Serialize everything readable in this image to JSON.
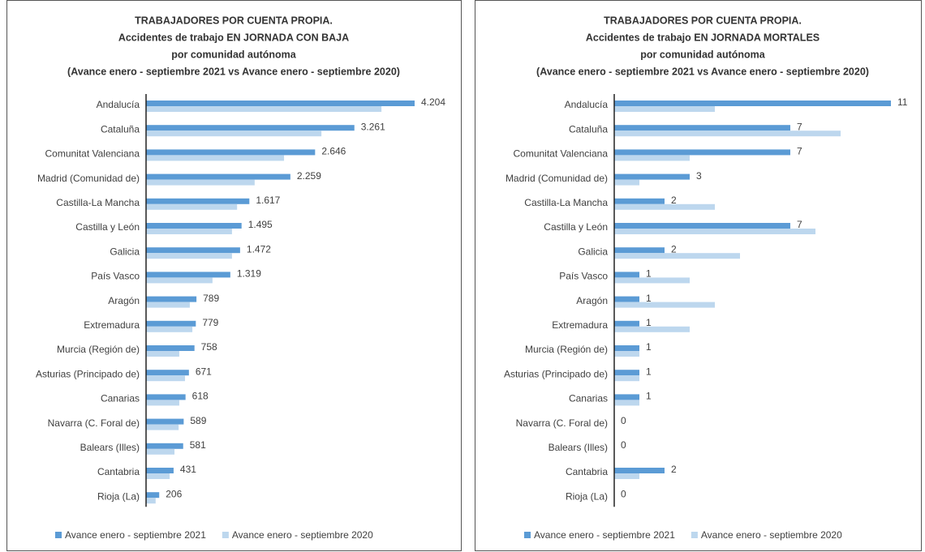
{
  "chart_data": [
    {
      "type": "barh",
      "title_lines": [
        "TRABAJADORES POR CUENTA PROPIA.",
        "Accidentes de trabajo EN JORNADA CON BAJA",
        "por comunidad autónoma",
        "(Avance enero - septiembre 2021 vs Avance enero - septiembre 2020)"
      ],
      "categories": [
        "Andalucía",
        "Cataluña",
        "Comunitat Valenciana",
        "Madrid (Comunidad de)",
        "Castilla-La Mancha",
        "Castilla y León",
        "Galicia",
        "País Vasco",
        "Aragón",
        "Extremadura",
        "Murcia (Región de)",
        "Asturias (Principado de)",
        "Canarias",
        "Navarra (C. Foral de)",
        "Balears (Illes)",
        "Cantabria",
        "Rioja (La)"
      ],
      "series": [
        {
          "name": "Avance enero - septiembre 2021",
          "color": "#5b9bd5",
          "values": [
            4204,
            3261,
            2646,
            2259,
            1617,
            1495,
            1472,
            1319,
            789,
            779,
            758,
            671,
            618,
            589,
            581,
            431,
            206
          ],
          "value_labels": [
            "4.204",
            "3.261",
            "2.646",
            "2.259",
            "1.617",
            "1.495",
            "1.472",
            "1.319",
            "789",
            "779",
            "758",
            "671",
            "618",
            "589",
            "581",
            "431",
            "206"
          ]
        },
        {
          "name": "Avance enero - septiembre 2020",
          "color": "#bdd7ee",
          "values": [
            3685,
            2745,
            2160,
            1700,
            1425,
            1345,
            1345,
            1040,
            685,
            725,
            520,
            610,
            520,
            510,
            445,
            370,
            150
          ]
        }
      ]
    },
    {
      "type": "barh",
      "title_lines": [
        "TRABAJADORES POR CUENTA PROPIA.",
        "Accidentes de trabajo EN JORNADA MORTALES",
        "por comunidad autónoma",
        "(Avance enero - septiembre 2021 vs Avance enero - septiembre 2020)"
      ],
      "categories": [
        "Andalucía",
        "Cataluña",
        "Comunitat Valenciana",
        "Madrid (Comunidad de)",
        "Castilla-La Mancha",
        "Castilla y León",
        "Galicia",
        "País Vasco",
        "Aragón",
        "Extremadura",
        "Murcia (Región de)",
        "Asturias (Principado de)",
        "Canarias",
        "Navarra (C. Foral de)",
        "Balears (Illes)",
        "Cantabria",
        "Rioja (La)"
      ],
      "series": [
        {
          "name": "Avance enero - septiembre 2021",
          "color": "#5b9bd5",
          "values": [
            11,
            7,
            7,
            3,
            2,
            7,
            2,
            1,
            1,
            1,
            1,
            1,
            1,
            0,
            0,
            2,
            0
          ]
        },
        {
          "name": "Avance enero - septiembre 2020",
          "color": "#bdd7ee",
          "values": [
            4,
            9,
            3,
            1,
            4,
            8,
            5,
            3,
            4,
            3,
            1,
            1,
            1,
            0,
            0,
            1,
            0
          ]
        }
      ]
    }
  ]
}
